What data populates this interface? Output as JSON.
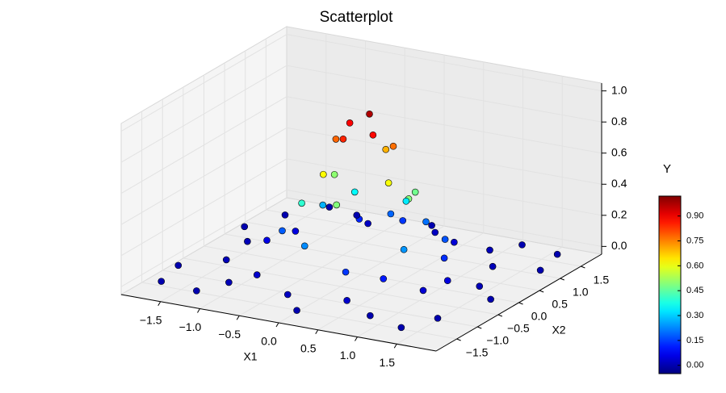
{
  "chart_data": {
    "type": "scatter3d",
    "title": "Scatterplot",
    "xlabel": "X1",
    "ylabel": "X2",
    "colorbar_label": "Y",
    "colormap": "jet",
    "x": [
      0.05,
      -0.2,
      0.2,
      -0.1,
      0.3,
      -0.35,
      0.1,
      -0.3,
      0.45,
      0.5,
      -0.5,
      0.0,
      -0.6,
      0.6,
      0.2,
      -0.7,
      0.75,
      -0.3,
      0.8,
      -0.9,
      0.3,
      -0.5,
      1.0,
      -1.1,
      1.1,
      0.6,
      -0.8,
      1.3,
      -1.4,
      0.2,
      -0.2,
      1.6,
      -1.6,
      1.7,
      -1.7,
      1.5,
      -1.5,
      0.0,
      0.1,
      1.2,
      -1.2,
      1.8,
      -1.8,
      0.9,
      -0.9,
      1.4,
      -1.3,
      0.5,
      -0.6,
      1.0,
      -1.0,
      1.8,
      -1.8,
      0.7,
      -0.4,
      0.4,
      -1.2,
      1.2,
      0.0,
      -0.1
    ],
    "y": [
      0.1,
      0.1,
      -0.1,
      -0.25,
      0.2,
      0.05,
      0.4,
      -0.35,
      -0.2,
      0.35,
      0.3,
      -0.6,
      -0.3,
      0.0,
      0.7,
      0.4,
      -0.4,
      -0.8,
      0.5,
      -0.2,
      -0.95,
      0.9,
      0.1,
      0.5,
      -0.6,
      1.1,
      -1.0,
      0.7,
      -0.6,
      1.4,
      -1.4,
      -1.2,
      1.2,
      1.5,
      -1.6,
      0.0,
      0.1,
      1.7,
      -1.75,
      1.6,
      -1.7,
      -0.3,
      0.6,
      -1.5,
      1.6,
      -1.7,
      1.7,
      -1.3,
      1.3,
      1.2,
      -1.3,
      0.9,
      -1.0,
      -0.8,
      0.6,
      0.8,
      0.0,
      -0.2,
      1.0,
      0.9
    ],
    "values": [
      0.97,
      0.89,
      0.88,
      0.85,
      0.77,
      0.78,
      0.7,
      0.62,
      0.61,
      0.47,
      0.5,
      0.49,
      0.4,
      0.49,
      0.33,
      0.27,
      0.24,
      0.23,
      0.17,
      0.18,
      0.14,
      0.12,
      0.13,
      0.05,
      0.04,
      0.04,
      0.03,
      0.01,
      0.01,
      0.02,
      0.02,
      0.0,
      0.0,
      0.0,
      0.0,
      0.01,
      0.01,
      0.0,
      0.0,
      0.0,
      0.0,
      0.0,
      0.0,
      0.0,
      0.0,
      0.0,
      0.0,
      0.03,
      0.02,
      0.01,
      0.01,
      0.0,
      0.0,
      0.11,
      0.35,
      0.2,
      0.06,
      0.05,
      0.14,
      0.19
    ],
    "xlim": [
      -2,
      2
    ],
    "ylim": [
      -2,
      2
    ],
    "zlim": [
      -0.05,
      1.05
    ],
    "clim": [
      -0.05,
      1.02
    ],
    "xticks": [
      {
        "value": -1.5,
        "label": "−1.5"
      },
      {
        "value": -1,
        "label": "−1.0"
      },
      {
        "value": -0.5,
        "label": "−0.5"
      },
      {
        "value": 0,
        "label": "0.0"
      },
      0.5,
      {
        "value": 1,
        "label": "1.0"
      },
      1.5
    ],
    "yticks": [
      {
        "value": -1.5,
        "label": "−1.5"
      },
      {
        "value": -1,
        "label": "−1.0"
      },
      {
        "value": -0.5,
        "label": "−0.5"
      },
      {
        "value": 0,
        "label": "0.0"
      },
      0.5,
      {
        "value": 1,
        "label": "1.0"
      },
      1.5
    ],
    "zticks": [
      {
        "value": 0,
        "label": "0.0"
      },
      0.2,
      0.4,
      0.6,
      0.8,
      {
        "value": 1,
        "label": "1.0"
      }
    ],
    "cticks": [
      {
        "value": 0,
        "label": "0.00"
      },
      0.15,
      {
        "value": 0.3,
        "label": "0.30"
      },
      0.45,
      {
        "value": 0.6,
        "label": "0.60"
      },
      0.75,
      {
        "value": 0.9,
        "label": "0.90"
      }
    ],
    "grid": true
  }
}
